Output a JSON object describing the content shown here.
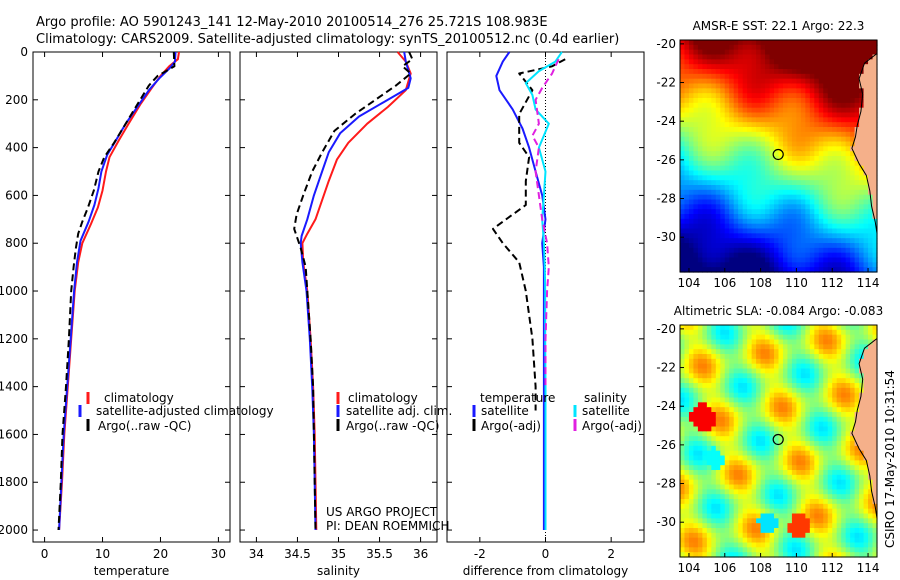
{
  "header": {
    "line1": "Argo profile: AO 5901243_141 12-May-2010 20100514_276 25.721S 108.983E",
    "line2": "Climatology: CARS2009. Satellite-adjusted climatology: synTS_20100512.nc (0.4d earlier)"
  },
  "footer": {
    "project": "US ARGO PROJECT",
    "pi": "PI: DEAN ROEMMICH",
    "credit": "CSIRO 17-May-2010 10:31:54"
  },
  "colors": {
    "climatology": "#ff1a1a",
    "satellite": "#1a1aff",
    "argo": "#000000",
    "salinity_satellite": "#00e5ff",
    "salinity_argo": "#e020e0",
    "land": "#f5b08a"
  },
  "chart_data": [
    {
      "id": "temperature",
      "type": "line",
      "xlabel": "temperature",
      "ylabel": "",
      "xlim": [
        -2,
        32
      ],
      "ylim": [
        2050,
        0
      ],
      "x_ticks": [
        0,
        10,
        20,
        30
      ],
      "y_ticks": [
        0,
        200,
        400,
        600,
        800,
        1000,
        1200,
        1400,
        1600,
        1800,
        2000
      ],
      "legend": {
        "position": "lower-right",
        "entries": [
          "climatology",
          "satellite-adjusted climatology",
          "Argo(..raw -QC)"
        ]
      },
      "series": [
        {
          "name": "climatology",
          "style": "solid",
          "color": "#ff1a1a",
          "points": [
            [
              23.2,
              0
            ],
            [
              23.0,
              30
            ],
            [
              21.5,
              60
            ],
            [
              20.0,
              100
            ],
            [
              18.5,
              150
            ],
            [
              16.5,
              220
            ],
            [
              14.5,
              300
            ],
            [
              12.8,
              370
            ],
            [
              11.2,
              440
            ],
            [
              10.6,
              500
            ],
            [
              10.0,
              580
            ],
            [
              9.2,
              650
            ],
            [
              8.0,
              720
            ],
            [
              6.5,
              800
            ],
            [
              5.8,
              880
            ],
            [
              5.2,
              1000
            ],
            [
              4.6,
              1200
            ],
            [
              4.0,
              1400
            ],
            [
              3.4,
              1600
            ],
            [
              3.0,
              1800
            ],
            [
              2.5,
              2000
            ]
          ]
        },
        {
          "name": "satellite-adjusted climatology",
          "style": "solid",
          "color": "#1a1aff",
          "points": [
            [
              22.6,
              0
            ],
            [
              22.5,
              40
            ],
            [
              21.5,
              70
            ],
            [
              19.8,
              110
            ],
            [
              18.0,
              160
            ],
            [
              16.0,
              230
            ],
            [
              14.0,
              300
            ],
            [
              12.3,
              370
            ],
            [
              10.8,
              430
            ],
            [
              9.8,
              500
            ],
            [
              9.3,
              570
            ],
            [
              8.6,
              640
            ],
            [
              7.6,
              710
            ],
            [
              6.2,
              790
            ],
            [
              5.6,
              880
            ],
            [
              5.1,
              1000
            ],
            [
              4.5,
              1200
            ],
            [
              3.9,
              1400
            ],
            [
              3.3,
              1600
            ],
            [
              2.9,
              1800
            ],
            [
              2.5,
              2000
            ]
          ]
        },
        {
          "name": "Argo(..raw -QC)",
          "style": "dashed",
          "color": "#000000",
          "points": [
            [
              22.3,
              0
            ],
            [
              22.4,
              60
            ],
            [
              19.5,
              100
            ],
            [
              18.0,
              140
            ],
            [
              16.5,
              200
            ],
            [
              15.0,
              260
            ],
            [
              13.5,
              320
            ],
            [
              12.0,
              380
            ],
            [
              10.3,
              440
            ],
            [
              9.3,
              500
            ],
            [
              8.5,
              580
            ],
            [
              7.5,
              650
            ],
            [
              6.5,
              710
            ],
            [
              5.8,
              760
            ],
            [
              5.4,
              820
            ],
            [
              5.0,
              900
            ],
            [
              4.6,
              1000
            ],
            [
              4.2,
              1200
            ],
            [
              3.7,
              1400
            ],
            [
              3.1,
              1600
            ],
            [
              2.8,
              1800
            ],
            [
              2.4,
              2000
            ]
          ]
        }
      ]
    },
    {
      "id": "salinity",
      "type": "line",
      "xlabel": "salinity",
      "ylabel": "",
      "xlim": [
        33.8,
        36.2
      ],
      "ylim": [
        2050,
        0
      ],
      "x_ticks": [
        34,
        34.5,
        35,
        35.5,
        36
      ],
      "legend": {
        "position": "lower-right",
        "entries": [
          "climatology",
          "satellite adj. clim.",
          "Argo(..raw -QC)"
        ]
      },
      "series": [
        {
          "name": "climatology",
          "style": "solid",
          "color": "#ff1a1a",
          "points": [
            [
              35.72,
              0
            ],
            [
              35.82,
              40
            ],
            [
              35.88,
              90
            ],
            [
              35.82,
              160
            ],
            [
              35.6,
              230
            ],
            [
              35.35,
              300
            ],
            [
              35.12,
              380
            ],
            [
              34.98,
              450
            ],
            [
              34.88,
              540
            ],
            [
              34.8,
              620
            ],
            [
              34.72,
              700
            ],
            [
              34.62,
              760
            ],
            [
              34.56,
              800
            ],
            [
              34.57,
              880
            ],
            [
              34.62,
              1000
            ],
            [
              34.66,
              1200
            ],
            [
              34.69,
              1400
            ],
            [
              34.71,
              1600
            ],
            [
              34.72,
              1800
            ],
            [
              34.73,
              2000
            ]
          ]
        },
        {
          "name": "satellite adj. clim.",
          "style": "solid",
          "color": "#1a1aff",
          "points": [
            [
              35.8,
              0
            ],
            [
              35.82,
              40
            ],
            [
              35.88,
              110
            ],
            [
              35.85,
              150
            ],
            [
              35.55,
              210
            ],
            [
              35.25,
              270
            ],
            [
              35.02,
              340
            ],
            [
              34.88,
              420
            ],
            [
              34.8,
              500
            ],
            [
              34.7,
              600
            ],
            [
              34.62,
              700
            ],
            [
              34.55,
              770
            ],
            [
              34.54,
              800
            ],
            [
              34.56,
              880
            ],
            [
              34.61,
              1000
            ],
            [
              34.65,
              1200
            ],
            [
              34.68,
              1400
            ],
            [
              34.7,
              1600
            ],
            [
              34.71,
              1800
            ],
            [
              34.72,
              2000
            ]
          ]
        },
        {
          "name": "Argo(..raw -QC)",
          "style": "dashed",
          "color": "#000000",
          "points": [
            [
              35.86,
              0
            ],
            [
              35.9,
              30
            ],
            [
              35.78,
              60
            ],
            [
              35.88,
              90
            ],
            [
              35.7,
              140
            ],
            [
              35.45,
              200
            ],
            [
              35.2,
              260
            ],
            [
              34.95,
              330
            ],
            [
              34.8,
              420
            ],
            [
              34.68,
              500
            ],
            [
              34.57,
              600
            ],
            [
              34.49,
              680
            ],
            [
              34.46,
              740
            ],
            [
              34.54,
              820
            ],
            [
              34.6,
              900
            ],
            [
              34.62,
              1000
            ],
            [
              34.66,
              1200
            ],
            [
              34.69,
              1400
            ],
            [
              34.7,
              1600
            ],
            [
              34.71,
              1800
            ],
            [
              34.72,
              2000
            ]
          ]
        }
      ]
    },
    {
      "id": "difference",
      "type": "line",
      "xlabel": "difference from climatology",
      "ylabel": "",
      "xlim": [
        -3,
        3
      ],
      "ylim": [
        2050,
        0
      ],
      "x_ticks": [
        -2,
        0,
        2
      ],
      "legend": {
        "position": "lower-right",
        "groups": [
          "temperature",
          "salinity"
        ],
        "entries": [
          "satellite",
          "Argo(-adj)",
          "satellite",
          "Argo(-adj)"
        ]
      },
      "series": [
        {
          "name": "temperature satellite",
          "style": "solid",
          "color": "#1a1aff",
          "points": [
            [
              -1.1,
              0
            ],
            [
              -1.3,
              40
            ],
            [
              -1.5,
              100
            ],
            [
              -1.4,
              160
            ],
            [
              -1.0,
              240
            ],
            [
              -0.7,
              320
            ],
            [
              -0.5,
              400
            ],
            [
              -0.3,
              500
            ],
            [
              -0.1,
              600
            ],
            [
              0.0,
              700
            ],
            [
              -0.1,
              800
            ],
            [
              -0.05,
              900
            ],
            [
              -0.05,
              1000
            ],
            [
              -0.05,
              1200
            ],
            [
              -0.05,
              1400
            ],
            [
              -0.05,
              1600
            ],
            [
              -0.05,
              1800
            ],
            [
              -0.05,
              2000
            ]
          ]
        },
        {
          "name": "temperature Argo(-adj)",
          "style": "dashed",
          "color": "#000000",
          "points": [
            [
              0.6,
              30
            ],
            [
              0.2,
              60
            ],
            [
              -0.8,
              90
            ],
            [
              -0.4,
              160
            ],
            [
              -0.8,
              260
            ],
            [
              -0.8,
              380
            ],
            [
              -0.5,
              440
            ],
            [
              -0.6,
              540
            ],
            [
              -0.6,
              640
            ],
            [
              -1.2,
              700
            ],
            [
              -1.6,
              740
            ],
            [
              -1.3,
              800
            ],
            [
              -0.8,
              880
            ],
            [
              -0.6,
              1000
            ],
            [
              -0.4,
              1200
            ],
            [
              -0.3,
              1400
            ],
            [
              -0.3,
              1500
            ]
          ]
        },
        {
          "name": "salinity satellite",
          "style": "solid",
          "color": "#00e5ff",
          "points": [
            [
              0.5,
              0
            ],
            [
              0.3,
              40
            ],
            [
              -0.2,
              80
            ],
            [
              -0.6,
              130
            ],
            [
              -0.4,
              180
            ],
            [
              -0.3,
              240
            ],
            [
              0.1,
              300
            ],
            [
              -0.2,
              400
            ],
            [
              0.0,
              500
            ],
            [
              -0.05,
              600
            ],
            [
              -0.1,
              700
            ],
            [
              -0.05,
              800
            ],
            [
              -0.02,
              900
            ],
            [
              -0.01,
              1000
            ],
            [
              -0.01,
              1200
            ],
            [
              0.0,
              1400
            ],
            [
              0.0,
              1600
            ],
            [
              0.0,
              1800
            ],
            [
              0.0,
              2000
            ]
          ]
        },
        {
          "name": "salinity Argo(-adj)",
          "style": "dashed",
          "color": "#e020e0",
          "points": [
            [
              0.4,
              30
            ],
            [
              0.2,
              90
            ],
            [
              -0.1,
              150
            ],
            [
              -0.3,
              200
            ],
            [
              -0.2,
              300
            ],
            [
              -0.4,
              350
            ],
            [
              -0.2,
              400
            ],
            [
              -0.3,
              500
            ],
            [
              -0.2,
              600
            ],
            [
              -0.1,
              700
            ],
            [
              0.05,
              800
            ],
            [
              0.1,
              900
            ],
            [
              0.05,
              1000
            ],
            [
              0.0,
              1200
            ],
            [
              0.0,
              1400
            ]
          ]
        }
      ]
    },
    {
      "id": "sst_map",
      "type": "heatmap",
      "title": "AMSR-E SST: 22.1 Argo: 22.3",
      "xlim": [
        103.5,
        114.5
      ],
      "ylim": [
        -31.8,
        -19.8
      ],
      "x_ticks": [
        104,
        106,
        108,
        110,
        112,
        114
      ],
      "y_ticks": [
        -20,
        -22,
        -24,
        -26,
        -28,
        -30
      ],
      "marker": {
        "lon": 108.983,
        "lat": -25.721
      },
      "palette": "jet"
    },
    {
      "id": "sla_map",
      "type": "heatmap",
      "title": "Altimetric SLA: -0.084 Argo: -0.083",
      "xlim": [
        103.5,
        114.5
      ],
      "ylim": [
        -31.8,
        -19.8
      ],
      "x_ticks": [
        104,
        106,
        108,
        110,
        112,
        114
      ],
      "y_ticks": [
        -20,
        -22,
        -24,
        -26,
        -28,
        -30
      ],
      "marker": {
        "lon": 108.983,
        "lat": -25.721
      },
      "palette": "jet"
    }
  ]
}
